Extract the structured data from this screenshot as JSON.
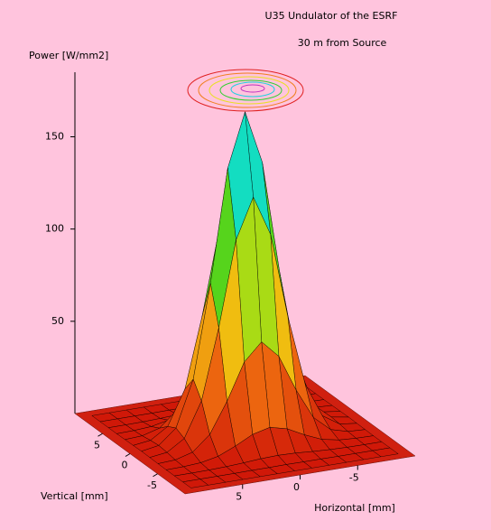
{
  "chart_data": {
    "type": "surface",
    "title": "U35 Undulator of the ESRF",
    "subtitle": "30 m from Source",
    "zlabel": "Power [W/mm2]",
    "xlabel": "Horizontal [mm]",
    "ylabel": "Vertical [mm]",
    "x": [
      -9,
      -7.5,
      -6,
      -4.5,
      -3,
      -1.5,
      0,
      1.5,
      3,
      4.5,
      6,
      7.5,
      9
    ],
    "y": [
      -9,
      -7.5,
      -6,
      -4.5,
      -3,
      -1.5,
      0,
      1.5,
      3,
      4.5,
      6,
      7.5,
      9
    ],
    "z": [
      [
        0,
        0,
        0,
        0,
        0,
        0,
        0,
        0,
        0,
        0,
        0,
        0,
        0
      ],
      [
        0,
        0,
        0,
        0,
        0.1,
        0.1,
        0.2,
        0.1,
        0.1,
        0,
        0,
        0,
        0
      ],
      [
        0,
        0,
        0.1,
        0.4,
        0.9,
        1.6,
        1.9,
        1.6,
        0.9,
        0.4,
        0.1,
        0,
        0
      ],
      [
        0,
        0.2,
        0.8,
        2.7,
        6.7,
        11.5,
        13.8,
        11.5,
        6.7,
        2.7,
        0.8,
        0.2,
        0
      ],
      [
        0.1,
        0.6,
        3.2,
        11.3,
        27.7,
        47.5,
        56.9,
        47.5,
        27.7,
        11.3,
        3.2,
        0.6,
        0.1
      ],
      [
        0.2,
        1.4,
        7.4,
        26.2,
        64.3,
        110.3,
        132.1,
        110.3,
        64.3,
        26.2,
        7.4,
        1.4,
        0.2
      ],
      [
        0.3,
        1.9,
        9.8,
        34.7,
        85.2,
        146.1,
        175,
        146.1,
        85.2,
        34.7,
        9.8,
        1.9,
        0.3
      ],
      [
        0.2,
        1.4,
        7.4,
        26.2,
        64.3,
        110.3,
        132.1,
        110.3,
        64.3,
        26.2,
        7.4,
        1.4,
        0.2
      ],
      [
        0.1,
        0.6,
        3.2,
        11.3,
        27.7,
        47.5,
        56.9,
        47.5,
        27.7,
        11.3,
        3.2,
        0.6,
        0.1
      ],
      [
        0,
        0.2,
        0.8,
        2.7,
        6.7,
        11.5,
        13.8,
        11.5,
        6.7,
        2.7,
        0.8,
        0.2,
        0
      ],
      [
        0,
        0,
        0.1,
        0.4,
        0.9,
        1.6,
        1.9,
        1.6,
        0.9,
        0.4,
        0.1,
        0,
        0
      ],
      [
        0,
        0,
        0,
        0,
        0.1,
        0.1,
        0.2,
        0.1,
        0.1,
        0,
        0,
        0,
        0
      ],
      [
        0,
        0,
        0,
        0,
        0,
        0,
        0,
        0,
        0,
        0,
        0,
        0,
        0
      ]
    ],
    "xlim": [
      10,
      -10
    ],
    "xticks": [
      5,
      0,
      -5
    ],
    "ylim": [
      -10,
      10
    ],
    "yticks": [
      -5,
      0,
      5
    ],
    "zlim": [
      0,
      185
    ],
    "zticks": [
      50,
      100,
      150
    ],
    "colormap": [
      "#d01808",
      "#f07010",
      "#f0e010",
      "#20d020",
      "#10e0e8",
      "#1010c8"
    ],
    "floor_color": "#d02010"
  }
}
